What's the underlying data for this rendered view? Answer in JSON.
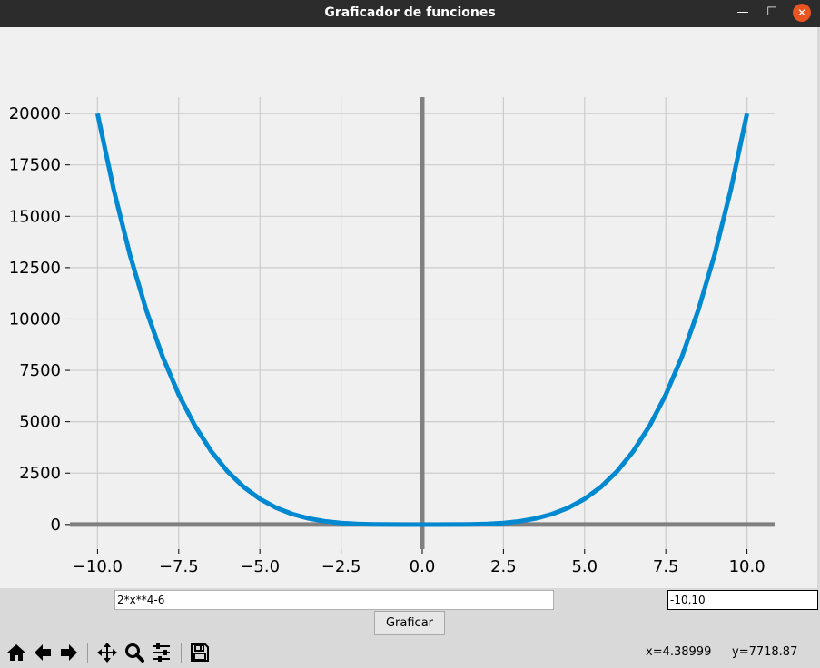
{
  "window": {
    "title": "Graficador de funciones",
    "minimize_glyph": "—",
    "maximize_glyph": "☐",
    "close_glyph": "✕"
  },
  "inputs": {
    "function_value": "2*x**4-6",
    "range_value": "-10,10"
  },
  "buttons": {
    "graph_label": "Graficar"
  },
  "toolbar": {
    "icons": [
      "home-icon",
      "back-arrow-icon",
      "forward-arrow-icon",
      "pan-icon",
      "zoom-icon",
      "configure-subplots-icon",
      "save-icon"
    ]
  },
  "status": {
    "x_readout": "x=4.38999",
    "y_readout": "y=7718.87"
  },
  "colors": {
    "curve": "#0088d1",
    "axis_lines": "#808080",
    "grid": "#cccccc",
    "plot_background": "#f0f0f0",
    "titlebar": "#2c2c2c",
    "close_button": "#e95420"
  },
  "chart_data": {
    "type": "line",
    "title": "",
    "xlabel": "",
    "ylabel": "",
    "xlim": [
      -10.85,
      10.85
    ],
    "ylim": [
      -1200,
      20800
    ],
    "grid": true,
    "x_ticks": [
      -10.0,
      -7.5,
      -5.0,
      -2.5,
      0.0,
      2.5,
      5.0,
      7.5,
      10.0
    ],
    "x_tick_labels": [
      "−10.0",
      "−7.5",
      "−5.0",
      "−2.5",
      "0.0",
      "2.5",
      "5.0",
      "7.5",
      "10.0"
    ],
    "y_ticks": [
      0,
      2500,
      5000,
      7500,
      10000,
      12500,
      15000,
      17500,
      20000
    ],
    "y_tick_labels": [
      "0",
      "2500",
      "5000",
      "7500",
      "10000",
      "12500",
      "15000",
      "17500",
      "20000"
    ],
    "series": [
      {
        "x": [
          -10,
          -9.5,
          -9,
          -8.5,
          -8,
          -7.5,
          -7,
          -6.5,
          -6,
          -5.5,
          -5,
          -4.5,
          -4,
          -3.5,
          -3,
          -2.5,
          -2,
          -1.5,
          -1,
          -0.5,
          0,
          0.5,
          1,
          1.5,
          2,
          2.5,
          3,
          3.5,
          4,
          4.5,
          5,
          5.5,
          6,
          6.5,
          7,
          7.5,
          8,
          8.5,
          9,
          9.5,
          10
        ],
        "y": [
          19994,
          16285,
          13116,
          10434,
          8186,
          6322,
          4796,
          3564,
          2586,
          1824,
          1244,
          814,
          506,
          294,
          156,
          72,
          26,
          4,
          -4,
          -6,
          -6,
          -6,
          -4,
          4,
          26,
          72,
          156,
          294,
          506,
          814,
          1244,
          1824,
          2586,
          3564,
          4796,
          6322,
          8186,
          10434,
          13116,
          16285,
          19994
        ]
      }
    ]
  }
}
